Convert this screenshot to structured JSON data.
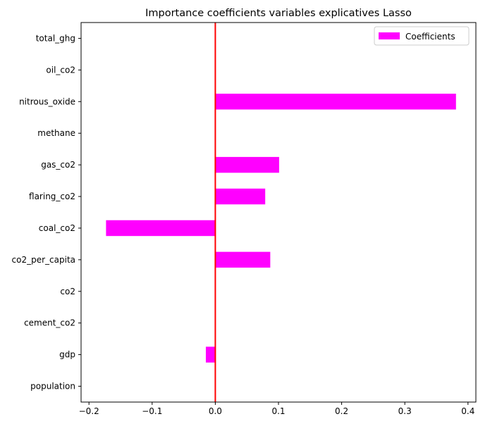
{
  "chart_data": {
    "type": "bar",
    "orientation": "horizontal",
    "title": "Importance coefficients variables explicatives Lasso",
    "xlabel": "",
    "ylabel": "",
    "categories": [
      "population",
      "gdp",
      "cement_co2",
      "co2",
      "co2_per_capita",
      "coal_co2",
      "flaring_co2",
      "gas_co2",
      "methane",
      "nitrous_oxide",
      "oil_co2",
      "total_ghg"
    ],
    "series": [
      {
        "name": "Coefficients",
        "color": "#ff00ff",
        "values": [
          0.0,
          -0.015,
          0.0,
          0.0,
          0.087,
          -0.173,
          0.079,
          0.101,
          0.0,
          0.381,
          0.0,
          0.0
        ]
      }
    ],
    "xlim": [
      -0.2125,
      0.4125
    ],
    "xticks": [
      -0.2,
      -0.1,
      0.0,
      0.1,
      0.2,
      0.3,
      0.4
    ],
    "xtick_labels": [
      "−0.2",
      "−0.1",
      "0.0",
      "0.1",
      "0.2",
      "0.3",
      "0.4"
    ],
    "reference_line": {
      "x": 0.0,
      "color": "#ff0000"
    },
    "legend": {
      "position": "top-right",
      "entries": [
        "Coefficients"
      ]
    },
    "grid": false
  }
}
